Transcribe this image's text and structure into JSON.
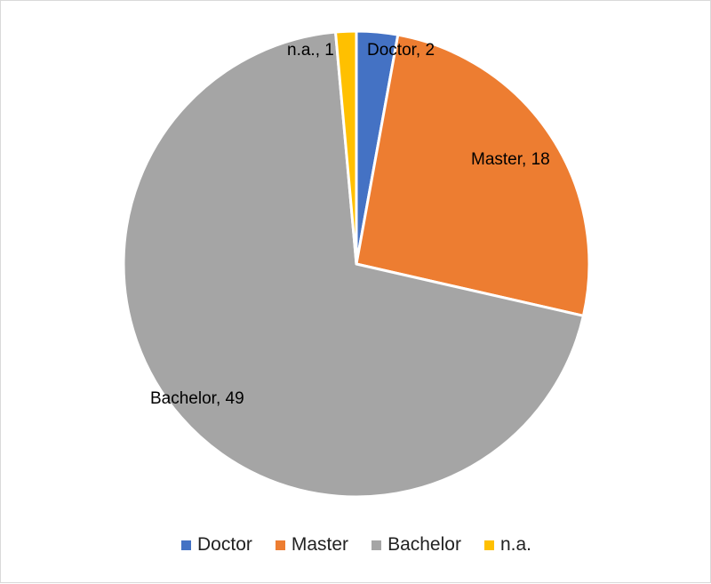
{
  "chart_data": {
    "type": "pie",
    "title": "",
    "categories": [
      "Doctor",
      "Master",
      "Bachelor",
      "n.a."
    ],
    "values": [
      2,
      18,
      49,
      1
    ],
    "colors": [
      "#4472c4",
      "#ed7d31",
      "#a5a5a5",
      "#ffc000"
    ],
    "data_labels": [
      "Doctor, 2",
      "Master, 18",
      "Bachelor, 49",
      "n.a., 1"
    ],
    "legend_position": "bottom",
    "start_angle": "12 o'clock, clockwise"
  }
}
